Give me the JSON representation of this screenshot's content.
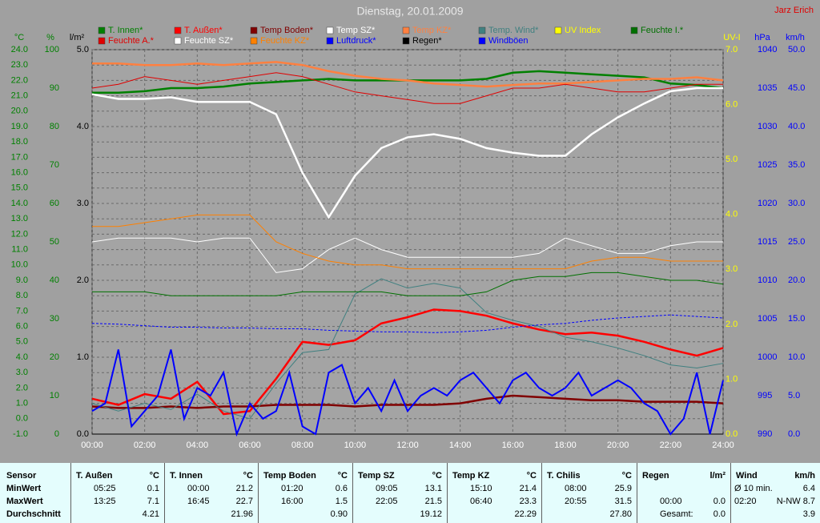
{
  "chart_data": {
    "type": "line",
    "title": "Dienstag, 20.01.2009",
    "author": "Jarz Erich",
    "grid": true,
    "x": [
      0,
      1,
      2,
      3,
      4,
      5,
      6,
      7,
      8,
      9,
      10,
      11,
      12,
      13,
      14,
      15,
      16,
      17,
      18,
      19,
      20,
      21,
      22,
      23,
      24
    ],
    "xlim": [
      0,
      24
    ],
    "xticks": [
      {
        "value": 0,
        "label": "00:00"
      },
      {
        "value": 2,
        "label": "02:00"
      },
      {
        "value": 4,
        "label": "04:00"
      },
      {
        "value": 6,
        "label": "06:00"
      },
      {
        "value": 8,
        "label": "08:00"
      },
      {
        "value": 10,
        "label": "10:00"
      },
      {
        "value": 12,
        "label": "12:00"
      },
      {
        "value": 14,
        "label": "14:00"
      },
      {
        "value": 16,
        "label": "16:00"
      },
      {
        "value": 18,
        "label": "18:00"
      },
      {
        "value": 20,
        "label": "20:00"
      },
      {
        "value": 22,
        "label": "22:00"
      },
      {
        "value": 24,
        "label": "24:00"
      }
    ],
    "y_axes": [
      {
        "label": "°C",
        "color": "#008000",
        "side": "left",
        "lim": [
          -1,
          24
        ],
        "ticks": [
          {
            "value": -1,
            "label": "-1.0"
          },
          {
            "value": 0,
            "label": "0.0"
          },
          {
            "value": 1,
            "label": "1.0"
          },
          {
            "value": 2,
            "label": "2.0"
          },
          {
            "value": 3,
            "label": "3.0"
          },
          {
            "value": 4,
            "label": "4.0"
          },
          {
            "value": 5,
            "label": "5.0"
          },
          {
            "value": 6,
            "label": "6.0"
          },
          {
            "value": 7,
            "label": "7.0"
          },
          {
            "value": 8,
            "label": "8.0"
          },
          {
            "value": 9,
            "label": "9.0"
          },
          {
            "value": 10,
            "label": "10.0"
          },
          {
            "value": 11,
            "label": "11.0"
          },
          {
            "value": 12,
            "label": "12.0"
          },
          {
            "value": 13,
            "label": "13.0"
          },
          {
            "value": 14,
            "label": "14.0"
          },
          {
            "value": 15,
            "label": "15.0"
          },
          {
            "value": 16,
            "label": "16.0"
          },
          {
            "value": 17,
            "label": "17.0"
          },
          {
            "value": 18,
            "label": "18.0"
          },
          {
            "value": 19,
            "label": "19.0"
          },
          {
            "value": 20,
            "label": "20.0"
          },
          {
            "value": 21,
            "label": "21.0"
          },
          {
            "value": 22,
            "label": "22.0"
          },
          {
            "value": 23,
            "label": "23.0"
          },
          {
            "value": 24,
            "label": "24.0"
          }
        ]
      },
      {
        "label": "%",
        "color": "#008000",
        "side": "left",
        "lim": [
          0,
          100
        ],
        "ticks": [
          0,
          10,
          20,
          30,
          40,
          50,
          60,
          70,
          80,
          90,
          100
        ]
      },
      {
        "label": "l/m²",
        "color": "#000000",
        "side": "left",
        "lim": [
          0,
          5
        ],
        "ticks": [
          {
            "value": 0,
            "label": "0.0"
          },
          {
            "value": 1,
            "label": "1.0"
          },
          {
            "value": 2,
            "label": "2.0"
          },
          {
            "value": 3,
            "label": "3.0"
          },
          {
            "value": 4,
            "label": "4.0"
          },
          {
            "value": 5,
            "label": "5.0"
          }
        ]
      },
      {
        "label": "UV-I",
        "color": "#ffff00",
        "side": "right",
        "lim": [
          0,
          7
        ],
        "ticks": [
          {
            "value": 0,
            "label": "0.0"
          },
          {
            "value": 1,
            "label": "1.0"
          },
          {
            "value": 2,
            "label": "2.0"
          },
          {
            "value": 3,
            "label": "3.0"
          },
          {
            "value": 4,
            "label": "4.0"
          },
          {
            "value": 5,
            "label": "5.0"
          },
          {
            "value": 6,
            "label": "6.0"
          },
          {
            "value": 7,
            "label": "7.0"
          }
        ]
      },
      {
        "label": "hPa",
        "color": "#0000ff",
        "side": "right",
        "lim": [
          990,
          1040
        ],
        "ticks": [
          990,
          995,
          1000,
          1005,
          1010,
          1015,
          1020,
          1025,
          1030,
          1035,
          1040
        ]
      },
      {
        "label": "km/h",
        "color": "#0000ff",
        "side": "right",
        "lim": [
          0,
          50
        ],
        "ticks": [
          {
            "value": 0,
            "label": "0.0"
          },
          {
            "value": 5,
            "label": "5.0"
          },
          {
            "value": 10,
            "label": "10.0"
          },
          {
            "value": 15,
            "label": "15.0"
          },
          {
            "value": 20,
            "label": "20.0"
          },
          {
            "value": 25,
            "label": "25.0"
          },
          {
            "value": 30,
            "label": "30.0"
          },
          {
            "value": 35,
            "label": "35.0"
          },
          {
            "value": 40,
            "label": "40.0"
          },
          {
            "value": 45,
            "label": "45.0"
          },
          {
            "value": 50,
            "label": "50.0"
          }
        ]
      }
    ],
    "series": [
      {
        "name": "T. Innen*",
        "color": "#008000",
        "axis": 0,
        "values": [
          21.2,
          21.2,
          21.3,
          21.5,
          21.5,
          21.6,
          21.8,
          21.9,
          22.0,
          22.1,
          22.0,
          22.0,
          22.0,
          22.0,
          22.0,
          22.1,
          22.5,
          22.6,
          22.5,
          22.4,
          22.3,
          22.2,
          21.8,
          21.7,
          21.5
        ]
      },
      {
        "name": "T. Außen*",
        "color": "#ff0000",
        "axis": 0,
        "values": [
          1.3,
          0.9,
          1.6,
          1.3,
          2.4,
          0.3,
          0.5,
          2.6,
          5.0,
          4.8,
          5.1,
          6.2,
          6.6,
          7.1,
          7.0,
          6.7,
          6.2,
          5.8,
          5.5,
          5.6,
          5.4,
          5.0,
          4.5,
          4.1,
          4.6
        ]
      },
      {
        "name": "Temp Boden*",
        "color": "#800000",
        "axis": 0,
        "values": [
          0.8,
          0.7,
          0.7,
          0.8,
          0.7,
          0.8,
          0.8,
          0.9,
          0.9,
          0.9,
          0.8,
          0.9,
          0.9,
          0.9,
          1.0,
          1.3,
          1.5,
          1.4,
          1.3,
          1.2,
          1.2,
          1.1,
          1.1,
          1.1,
          1.0
        ]
      },
      {
        "name": "Temp SZ*",
        "color": "#ffffff",
        "axis": 0,
        "values": [
          21.1,
          20.8,
          20.8,
          20.9,
          20.6,
          20.6,
          20.6,
          19.8,
          16.0,
          13.1,
          15.8,
          17.6,
          18.3,
          18.5,
          18.2,
          17.6,
          17.3,
          17.1,
          17.1,
          18.5,
          19.6,
          20.5,
          21.3,
          21.5,
          21.5
        ]
      },
      {
        "name": "Temp KZ*",
        "color": "#ff8040",
        "axis": 0,
        "values": [
          23.1,
          23.1,
          23.0,
          23.0,
          23.1,
          23.0,
          23.1,
          23.2,
          23.0,
          22.6,
          22.3,
          22.1,
          22.0,
          21.8,
          21.7,
          21.6,
          21.7,
          21.8,
          21.8,
          21.9,
          22.0,
          22.1,
          22.1,
          22.2,
          22.0
        ]
      },
      {
        "name": "Temp. Wind*",
        "color": "#408080",
        "axis": 0,
        "values": [
          1.0,
          0.5,
          1.0,
          0.6,
          1.6,
          0.5,
          0.0,
          2.3,
          4.3,
          4.5,
          8.1,
          9.1,
          8.5,
          8.8,
          8.5,
          6.9,
          6.4,
          6.0,
          5.3,
          5.0,
          4.6,
          4.1,
          3.5,
          3.3,
          3.6
        ]
      },
      {
        "name": "UV Index",
        "color": "#ffff00",
        "axis": 3,
        "values": [
          0,
          0,
          0,
          0,
          0,
          0,
          0,
          0,
          0,
          0,
          0,
          0,
          0,
          0,
          0,
          0,
          0,
          0,
          0,
          0,
          0,
          0,
          0,
          0,
          0
        ]
      },
      {
        "name": "Feuchte I.*",
        "color": "#007000",
        "axis": 1,
        "values": [
          37,
          37,
          37,
          36,
          36,
          36,
          36,
          36,
          37,
          37,
          37,
          37,
          36,
          36,
          36,
          37,
          40,
          41,
          41,
          42,
          42,
          41,
          40,
          40,
          39
        ]
      },
      {
        "name": "Feuchte A.*",
        "color": "#e00000",
        "axis": 1,
        "values": [
          90,
          91,
          93,
          92,
          91,
          92,
          93,
          94,
          93,
          91,
          89,
          88,
          87,
          86,
          86,
          88,
          90,
          90,
          91,
          90,
          89,
          89,
          90,
          91,
          91
        ]
      },
      {
        "name": "Feuchte SZ*",
        "color": "#ffffff",
        "axis": 1,
        "values": [
          50,
          51,
          51,
          51,
          50,
          51,
          51,
          42,
          43,
          48,
          51,
          48,
          46,
          46,
          46,
          46,
          46,
          47,
          51,
          49,
          47,
          47,
          49,
          50,
          50
        ]
      },
      {
        "name": "Feuchte KZ*",
        "color": "#ff8000",
        "axis": 1,
        "values": [
          54,
          54,
          55,
          56,
          57,
          57,
          57,
          50,
          47,
          45,
          44,
          44,
          43,
          43,
          43,
          43,
          43,
          43,
          43,
          45,
          46,
          46,
          45,
          45,
          45
        ]
      },
      {
        "name": "Luftdruck*",
        "color": "#0000ff",
        "axis": 4,
        "style": "dotted",
        "values": [
          1004.4,
          1004.3,
          1004.1,
          1003.9,
          1003.9,
          1003.8,
          1003.8,
          1003.7,
          1003.7,
          1003.5,
          1003.4,
          1003.3,
          1003.3,
          1003.2,
          1003.3,
          1003.5,
          1003.9,
          1004.2,
          1004.4,
          1004.8,
          1005.1,
          1005.3,
          1005.5,
          1005.3,
          1005.1
        ]
      },
      {
        "name": "Regen*",
        "color": "#000000",
        "axis": 2,
        "values": [
          0,
          0,
          0,
          0,
          0,
          0,
          0,
          0,
          0,
          0,
          0,
          0,
          0,
          0,
          0,
          0,
          0,
          0,
          0,
          0,
          0,
          0,
          0,
          0,
          0
        ]
      },
      {
        "name": "Windböen",
        "color": "#0000ff",
        "axis": 5,
        "x": [
          0,
          0.5,
          1,
          1.5,
          2,
          2.5,
          3,
          3.5,
          4,
          4.5,
          5,
          5.5,
          6,
          6.5,
          7,
          7.5,
          8,
          8.5,
          9,
          9.5,
          10,
          10.5,
          11,
          11.5,
          12,
          12.5,
          13,
          13.5,
          14,
          14.5,
          15,
          15.5,
          16,
          16.5,
          17,
          17.5,
          18,
          18.5,
          19,
          19.5,
          20,
          20.5,
          21,
          21.5,
          22,
          22.5,
          23,
          23.5,
          24
        ],
        "values": [
          3,
          4,
          11,
          1,
          3,
          5,
          11,
          2,
          6,
          5,
          8,
          0,
          4,
          2,
          3,
          8,
          1,
          0,
          8,
          9,
          4,
          6,
          3,
          7,
          3,
          5,
          6,
          5,
          7,
          8,
          6,
          4,
          7,
          8,
          6,
          5,
          6,
          8,
          5,
          6,
          7,
          6,
          4,
          3,
          0,
          2,
          8,
          0,
          7
        ]
      }
    ]
  },
  "stats": {
    "row_labels": [
      "Sensor",
      "MinWert",
      "MaxWert",
      "Durchschnitt"
    ],
    "sensors": [
      {
        "name": "T. Außen",
        "unit": "°C",
        "rows": [
          {
            "time": "05:25",
            "value": "0.1"
          },
          {
            "time": "13:25",
            "value": "7.1"
          },
          {
            "value": "4.21"
          }
        ]
      },
      {
        "name": "T. Innen",
        "unit": "°C",
        "rows": [
          {
            "time": "00:00",
            "value": "21.2"
          },
          {
            "time": "16:45",
            "value": "22.7"
          },
          {
            "value": "21.96"
          }
        ]
      },
      {
        "name": "Temp Boden",
        "unit": "°C",
        "rows": [
          {
            "time": "01:20",
            "value": "0.6"
          },
          {
            "time": "16:00",
            "value": "1.5"
          },
          {
            "value": "0.90"
          }
        ]
      },
      {
        "name": "Temp SZ",
        "unit": "°C",
        "rows": [
          {
            "time": "09:05",
            "value": "13.1"
          },
          {
            "time": "22:05",
            "value": "21.5"
          },
          {
            "value": "19.12"
          }
        ]
      },
      {
        "name": "Temp KZ",
        "unit": "°C",
        "rows": [
          {
            "time": "15:10",
            "value": "21.4"
          },
          {
            "time": "06:40",
            "value": "23.3"
          },
          {
            "value": "22.29"
          }
        ]
      },
      {
        "name": "T. Chilis",
        "unit": "°C",
        "rows": [
          {
            "time": "08:00",
            "value": "25.9"
          },
          {
            "time": "20:55",
            "value": "31.5"
          },
          {
            "value": "27.80"
          }
        ]
      },
      {
        "name": "Regen",
        "unit": "l/m²",
        "rows": [
          null,
          {
            "time": "00:00",
            "value": "0.0"
          },
          {
            "time": "Gesamt:",
            "value": "0.0"
          }
        ]
      },
      {
        "name": "Wind",
        "unit": "km/h",
        "rows": [
          {
            "time": "Ø 10 min.",
            "value": "6.4"
          },
          {
            "time": "02:20",
            "value": "N-NW 8.7"
          },
          {
            "value": "3.9"
          }
        ]
      }
    ]
  }
}
